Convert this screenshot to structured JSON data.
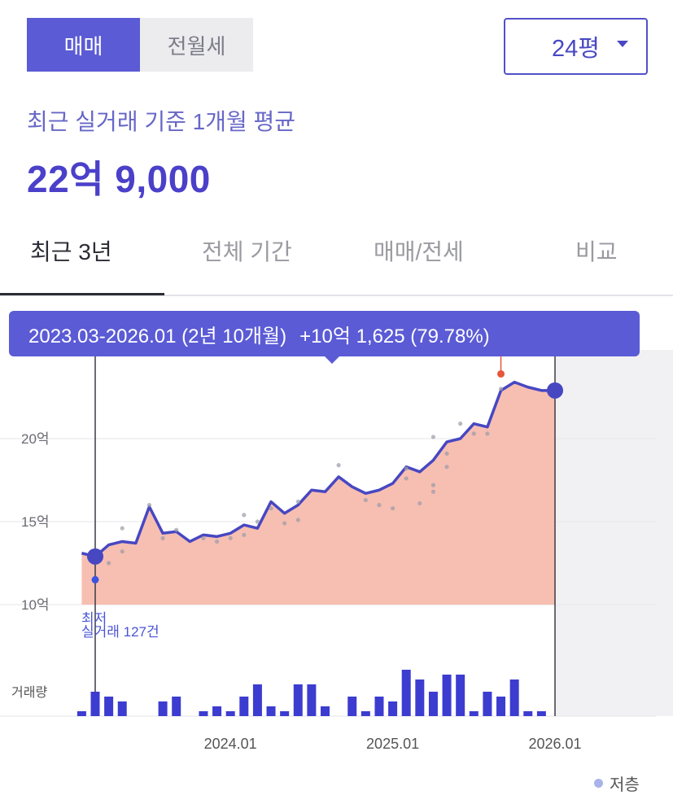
{
  "deal_toggle": {
    "options": [
      "매매",
      "전월세"
    ],
    "selected": "매매"
  },
  "size_select": {
    "value": "24평"
  },
  "summary": {
    "subtitle": "최근 실거래 기준 1개월 평균",
    "price": "22억 9,000"
  },
  "tabs": [
    {
      "label": "최근 3년",
      "active": true
    },
    {
      "label": "전체 기간",
      "active": false
    },
    {
      "label": "매매/전세",
      "active": false
    },
    {
      "label": "비교",
      "active": false
    }
  ],
  "tooltip": {
    "range": "2023.03-2026.01 (2년 10개월)",
    "change": "+10억 1,625 (79.78%)"
  },
  "annotations": {
    "low_label": "최저",
    "count_label": "실거래 127건"
  },
  "legend": {
    "label": "저층",
    "color": "#a9b3ea"
  },
  "colors": {
    "accent": "#5b5bd6",
    "line": "#4747c2",
    "area": "#f6b4a4",
    "volume": "#3c3cd0",
    "high_marker": "#e4573a"
  },
  "chart_data": {
    "type": "line",
    "y_unit": "억",
    "y_ticks": [
      10,
      15,
      20
    ],
    "y_tick_labels": [
      "10억",
      "15억",
      "20억"
    ],
    "ylim": [
      9,
      25
    ],
    "x_ticks": [
      "2024.01",
      "2025.01",
      "2026.01"
    ],
    "volume_label": "거래량",
    "series": [
      {
        "kind": "average",
        "x": [
          "2023-02",
          "2023-03",
          "2023-04",
          "2023-05",
          "2023-06",
          "2023-07",
          "2023-08",
          "2023-09",
          "2023-10",
          "2023-11",
          "2023-12",
          "2024-01",
          "2024-02",
          "2024-03",
          "2024-04",
          "2024-05",
          "2024-06",
          "2024-07",
          "2024-08",
          "2024-09",
          "2024-10",
          "2024-11",
          "2024-12",
          "2025-01",
          "2025-02",
          "2025-03",
          "2025-04",
          "2025-05",
          "2025-06",
          "2025-07",
          "2025-08",
          "2025-09",
          "2025-10",
          "2025-11",
          "2025-12",
          "2026-01"
        ],
        "y": [
          13.1,
          12.9,
          13.6,
          13.8,
          13.7,
          15.9,
          14.3,
          14.4,
          13.8,
          14.2,
          14.1,
          14.3,
          14.8,
          14.6,
          16.2,
          15.5,
          16.0,
          16.9,
          16.8,
          17.7,
          17.1,
          16.7,
          16.9,
          17.3,
          18.3,
          18.0,
          18.7,
          19.8,
          20.0,
          20.9,
          20.7,
          22.9,
          23.4,
          23.1,
          22.9,
          22.9
        ]
      }
    ],
    "transactions": [
      {
        "x": "2023-03",
        "y": 11.6
      },
      {
        "x": "2023-04",
        "y": 12.5
      },
      {
        "x": "2023-05",
        "y": 13.2
      },
      {
        "x": "2023-05",
        "y": 14.6
      },
      {
        "x": "2023-07",
        "y": 16.0
      },
      {
        "x": "2023-08",
        "y": 14.0
      },
      {
        "x": "2023-09",
        "y": 14.5
      },
      {
        "x": "2023-11",
        "y": 14.0
      },
      {
        "x": "2023-12",
        "y": 13.8
      },
      {
        "x": "2024-01",
        "y": 14.0
      },
      {
        "x": "2024-02",
        "y": 15.4
      },
      {
        "x": "2024-02",
        "y": 14.2
      },
      {
        "x": "2024-03",
        "y": 15.0
      },
      {
        "x": "2024-04",
        "y": 15.8
      },
      {
        "x": "2024-05",
        "y": 14.9
      },
      {
        "x": "2024-06",
        "y": 16.2
      },
      {
        "x": "2024-06",
        "y": 15.1
      },
      {
        "x": "2024-09",
        "y": 18.4
      },
      {
        "x": "2024-11",
        "y": 16.3
      },
      {
        "x": "2024-12",
        "y": 16.0
      },
      {
        "x": "2025-01",
        "y": 15.8
      },
      {
        "x": "2025-02",
        "y": 17.6
      },
      {
        "x": "2025-02",
        "y": 18.2
      },
      {
        "x": "2025-03",
        "y": 16.1
      },
      {
        "x": "2025-04",
        "y": 20.1
      },
      {
        "x": "2025-04",
        "y": 17.2
      },
      {
        "x": "2025-04",
        "y": 16.8
      },
      {
        "x": "2025-05",
        "y": 19.1
      },
      {
        "x": "2025-05",
        "y": 18.3
      },
      {
        "x": "2025-06",
        "y": 20.9
      },
      {
        "x": "2025-07",
        "y": 20.3
      },
      {
        "x": "2025-08",
        "y": 20.3
      },
      {
        "x": "2025-09",
        "y": 23.0
      }
    ],
    "high_marker": {
      "x": "2025-09",
      "y": 23.9
    },
    "low_marker": {
      "x": "2023-03",
      "y": 11.5
    },
    "volume": [
      {
        "x": "2023-02",
        "v": 0.2
      },
      {
        "x": "2023-03",
        "v": 1.0
      },
      {
        "x": "2023-04",
        "v": 0.8
      },
      {
        "x": "2023-05",
        "v": 0.6
      },
      {
        "x": "2023-08",
        "v": 0.6
      },
      {
        "x": "2023-09",
        "v": 0.8
      },
      {
        "x": "2023-11",
        "v": 0.2
      },
      {
        "x": "2023-12",
        "v": 0.4
      },
      {
        "x": "2024-01",
        "v": 0.2
      },
      {
        "x": "2024-02",
        "v": 0.8
      },
      {
        "x": "2024-03",
        "v": 1.3
      },
      {
        "x": "2024-04",
        "v": 0.4
      },
      {
        "x": "2024-05",
        "v": 0.2
      },
      {
        "x": "2024-06",
        "v": 1.3
      },
      {
        "x": "2024-07",
        "v": 1.3
      },
      {
        "x": "2024-08",
        "v": 0.4
      },
      {
        "x": "2024-10",
        "v": 0.8
      },
      {
        "x": "2024-11",
        "v": 0.2
      },
      {
        "x": "2024-12",
        "v": 0.8
      },
      {
        "x": "2025-01",
        "v": 0.6
      },
      {
        "x": "2025-02",
        "v": 1.9
      },
      {
        "x": "2025-03",
        "v": 1.5
      },
      {
        "x": "2025-04",
        "v": 1.0
      },
      {
        "x": "2025-05",
        "v": 1.7
      },
      {
        "x": "2025-06",
        "v": 1.7
      },
      {
        "x": "2025-07",
        "v": 0.2
      },
      {
        "x": "2025-08",
        "v": 1.0
      },
      {
        "x": "2025-09",
        "v": 0.8
      },
      {
        "x": "2025-10",
        "v": 1.5
      },
      {
        "x": "2025-11",
        "v": 0.2
      },
      {
        "x": "2025-12",
        "v": 0.2
      }
    ],
    "period_start": "2023-03",
    "period_end": "2026-01"
  }
}
